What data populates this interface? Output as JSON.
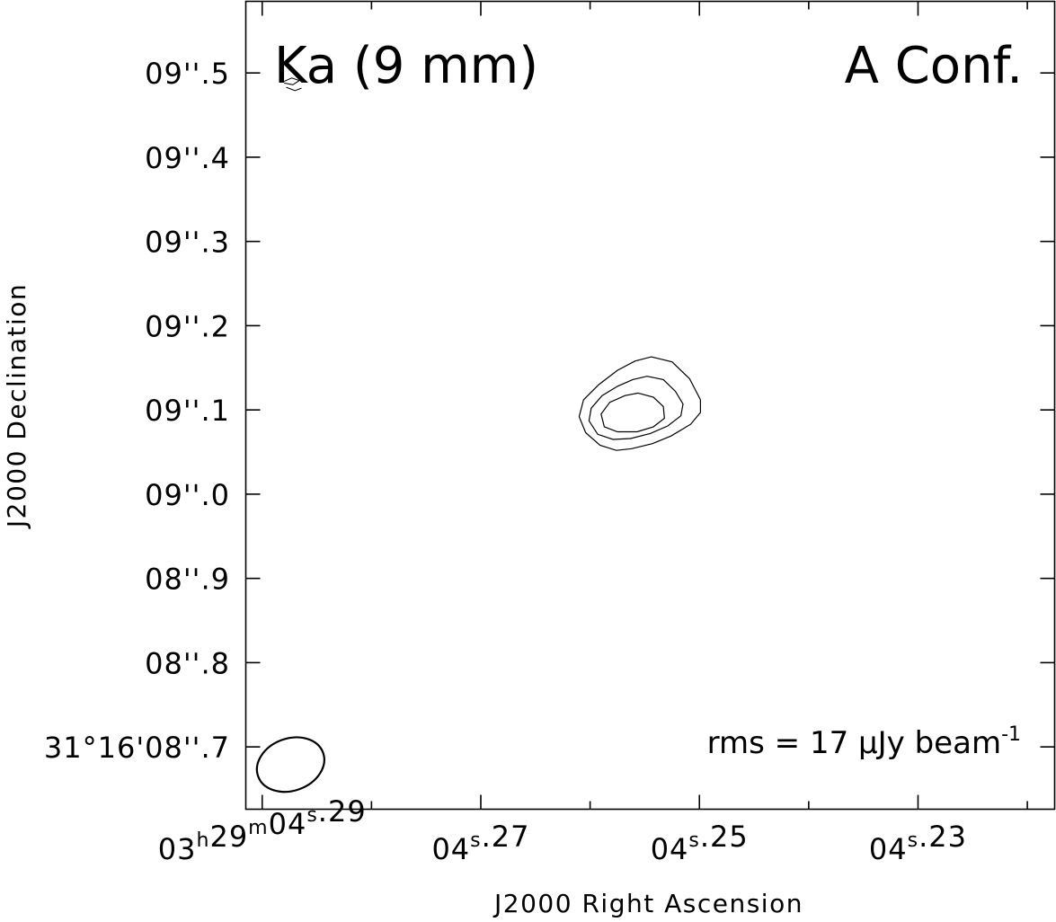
{
  "chart_data": {
    "type": "contour",
    "xlabel": "J2000 Right Ascension",
    "ylabel": "J2000 Declination",
    "corner_left": "Ka (9 mm)",
    "corner_right": "A Conf.",
    "rms": {
      "prefix": "rms = 17 μJy beam",
      "exponent": "-1"
    },
    "x_range_s": [
      4.2915,
      4.2175
    ],
    "y_range_arcsec": [
      8.626,
      9.585
    ],
    "x_tick_values_s": [
      4.29,
      4.27,
      4.25,
      4.23
    ],
    "x_minor_tick_values_s": [
      4.28,
      4.26,
      4.24,
      4.22
    ],
    "x_ticks": [
      {
        "value": 4.29,
        "parts": [
          {
            "t": "03",
            "s": "h"
          },
          {
            "t": "29",
            "s": "m"
          },
          {
            "t": "04",
            "s": "s"
          },
          {
            "t": ".29"
          }
        ]
      },
      {
        "value": 4.27,
        "parts": [
          {
            "t": "04",
            "s": "s"
          },
          {
            "t": ".27"
          }
        ]
      },
      {
        "value": 4.25,
        "parts": [
          {
            "t": "04",
            "s": "s"
          },
          {
            "t": ".25"
          }
        ]
      },
      {
        "value": 4.23,
        "parts": [
          {
            "t": "04",
            "s": "s"
          },
          {
            "t": ".23"
          }
        ]
      }
    ],
    "y_ticks": [
      {
        "value": 9.5,
        "label": "09''.5"
      },
      {
        "value": 9.4,
        "label": "09''.4"
      },
      {
        "value": 9.3,
        "label": "09''.3"
      },
      {
        "value": 9.2,
        "label": "09''.2"
      },
      {
        "value": 9.1,
        "label": "09''.1"
      },
      {
        "value": 9.0,
        "label": "09''.0"
      },
      {
        "value": 8.9,
        "label": "08''.9"
      },
      {
        "value": 8.8,
        "label": "08''.8"
      },
      {
        "value": 8.7,
        "label": "31°16'08''.7"
      }
    ],
    "source_contours": [
      [
        [
          4.2544,
          9.163
        ],
        [
          4.2525,
          9.157
        ],
        [
          4.2509,
          9.137
        ],
        [
          4.2499,
          9.112
        ],
        [
          4.2499,
          9.097
        ],
        [
          4.2508,
          9.083
        ],
        [
          4.2526,
          9.069
        ],
        [
          4.2543,
          9.06
        ],
        [
          4.2562,
          9.054
        ],
        [
          4.2576,
          9.052
        ],
        [
          4.2591,
          9.058
        ],
        [
          4.2604,
          9.073
        ],
        [
          4.261,
          9.092
        ],
        [
          4.2606,
          9.112
        ],
        [
          4.2592,
          9.13
        ],
        [
          4.2575,
          9.147
        ],
        [
          4.2559,
          9.158
        ]
      ],
      [
        [
          4.2548,
          9.14
        ],
        [
          4.2533,
          9.136
        ],
        [
          4.2522,
          9.122
        ],
        [
          4.2515,
          9.107
        ],
        [
          4.2517,
          9.093
        ],
        [
          4.2529,
          9.081
        ],
        [
          4.2545,
          9.072
        ],
        [
          4.2563,
          9.066
        ],
        [
          4.2579,
          9.065
        ],
        [
          4.2593,
          9.071
        ],
        [
          4.2601,
          9.087
        ],
        [
          4.2599,
          9.102
        ],
        [
          4.2589,
          9.117
        ],
        [
          4.2575,
          9.128
        ],
        [
          4.2561,
          9.136
        ]
      ],
      [
        [
          4.2556,
          9.12
        ],
        [
          4.2542,
          9.115
        ],
        [
          4.2533,
          9.104
        ],
        [
          4.2532,
          9.09
        ],
        [
          4.2542,
          9.08
        ],
        [
          4.2557,
          9.074
        ],
        [
          4.2575,
          9.074
        ],
        [
          4.2587,
          9.08
        ],
        [
          4.259,
          9.095
        ],
        [
          4.2582,
          9.109
        ],
        [
          4.2568,
          9.117
        ]
      ]
    ],
    "noise_contours": [
      [
        [
          4.288,
          9.49
        ],
        [
          4.2873,
          9.494
        ],
        [
          4.2866,
          9.491
        ],
        [
          4.2872,
          9.486
        ],
        [
          4.288,
          9.488
        ]
      ],
      [
        [
          4.2878,
          9.483
        ],
        [
          4.287,
          9.479
        ],
        [
          4.2864,
          9.482
        ]
      ]
    ],
    "beam": {
      "center_s": 4.2874,
      "center_arcsec": 8.679,
      "major_arcsec": 0.082,
      "minor_arcsec": 0.062,
      "pa_deg": 70
    }
  }
}
